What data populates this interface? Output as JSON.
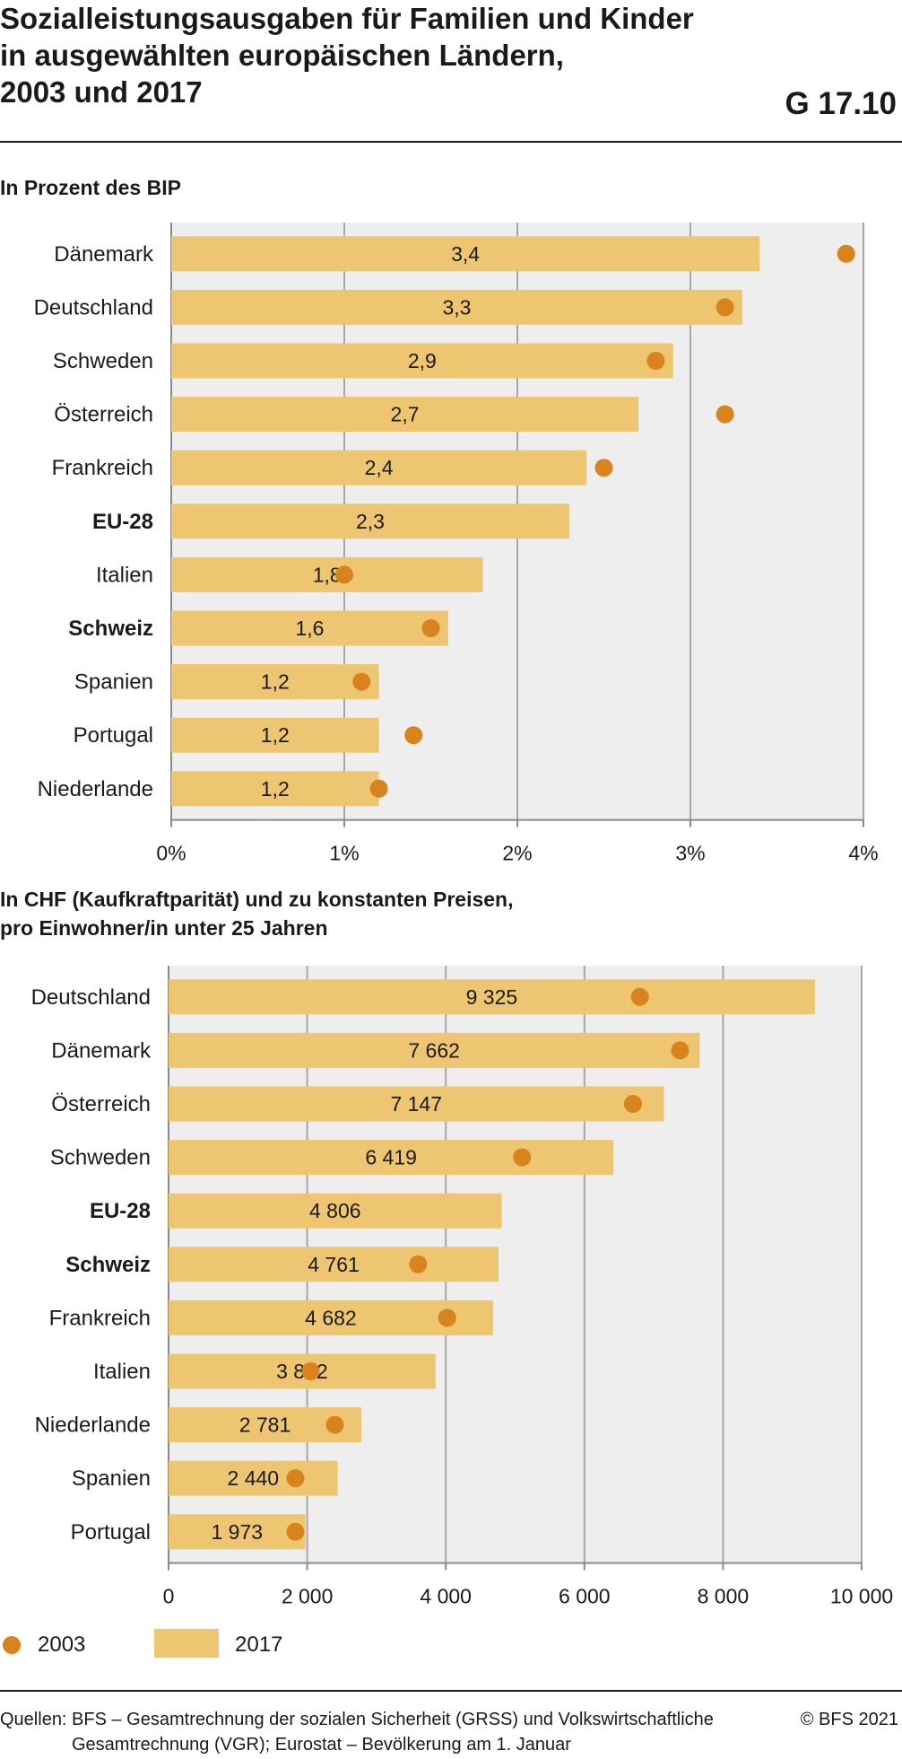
{
  "header": {
    "title_lines": [
      "Sozialleistungsausgaben für Familien und Kinder",
      "in ausgewählten europäischen Ländern,",
      "2003 und 2017"
    ],
    "code": "G 17.10"
  },
  "colors": {
    "bar": "#eec671",
    "dot": "#d8831c",
    "plot_bg": "#eeeeee",
    "grid": "#a6a6a6",
    "axis": "#8a8a8a"
  },
  "chart_data": [
    {
      "type": "bar",
      "orientation": "horizontal",
      "subtitle_lines": [
        "In Prozent des BIP"
      ],
      "categories": [
        "Dänemark",
        "Deutschland",
        "Schweden",
        "Österreich",
        "Frankreich",
        "EU-28",
        "Italien",
        "Schweiz",
        "Spanien",
        "Portugal",
        "Niederlande"
      ],
      "bold_categories": [
        "EU-28",
        "Schweiz"
      ],
      "series": [
        {
          "name": "2017",
          "mark": "bar",
          "values": [
            3.4,
            3.3,
            2.9,
            2.7,
            2.4,
            2.3,
            1.8,
            1.6,
            1.2,
            1.2,
            1.2
          ]
        },
        {
          "name": "2003",
          "mark": "dot",
          "values": [
            3.9,
            3.2,
            2.8,
            3.2,
            2.5,
            null,
            1.0,
            1.5,
            1.1,
            1.4,
            1.2
          ]
        }
      ],
      "data_labels": [
        "3,4",
        "3,3",
        "2,9",
        "2,7",
        "2,4",
        "2,3",
        "1,8",
        "1,6",
        "1,2",
        "1,2",
        "1,2"
      ],
      "xlim": [
        0,
        4
      ],
      "xticks": [
        0,
        1,
        2,
        3,
        4
      ],
      "xtick_labels": [
        "0%",
        "1%",
        "2%",
        "3%",
        "4%"
      ],
      "grid": true
    },
    {
      "type": "bar",
      "orientation": "horizontal",
      "subtitle_lines": [
        "In CHF (Kaufkraftparität) und zu konstanten Preisen,",
        "pro Einwohner/in unter 25 Jahren"
      ],
      "categories": [
        "Deutschland",
        "Dänemark",
        "Österreich",
        "Schweden",
        "EU-28",
        "Schweiz",
        "Frankreich",
        "Italien",
        "Niederlande",
        "Spanien",
        "Portugal"
      ],
      "bold_categories": [
        "EU-28",
        "Schweiz"
      ],
      "series": [
        {
          "name": "2017",
          "mark": "bar",
          "values": [
            9325,
            7662,
            7147,
            6419,
            4806,
            4761,
            4682,
            3852,
            2781,
            2440,
            1973
          ]
        },
        {
          "name": "2003",
          "mark": "dot",
          "values": [
            6800,
            7380,
            6700,
            5100,
            null,
            3600,
            4020,
            2050,
            2400,
            1830,
            1830
          ]
        }
      ],
      "data_labels": [
        "9 325",
        "7 662",
        "7 147",
        "6 419",
        "4 806",
        "4 761",
        "4 682",
        "3 852",
        "2 781",
        "2 440",
        "1 973"
      ],
      "xlim": [
        0,
        10000
      ],
      "xticks": [
        0,
        2000,
        4000,
        6000,
        8000,
        10000
      ],
      "xtick_labels": [
        "0",
        "2 000",
        "4 000",
        "6 000",
        "8 000",
        "10 000"
      ],
      "grid": true
    }
  ],
  "legend": [
    {
      "label": "2003",
      "mark": "dot"
    },
    {
      "label": "2017",
      "mark": "bar"
    }
  ],
  "footer": {
    "source_lines": [
      "Quellen: BFS – Gesamtrechnung der sozialen Sicherheit (GRSS) und Volkswirtschaftliche",
      "Gesamtrechnung (VGR); Eurostat – Bevölkerung am 1. Januar"
    ],
    "copyright": "© BFS 2021"
  }
}
